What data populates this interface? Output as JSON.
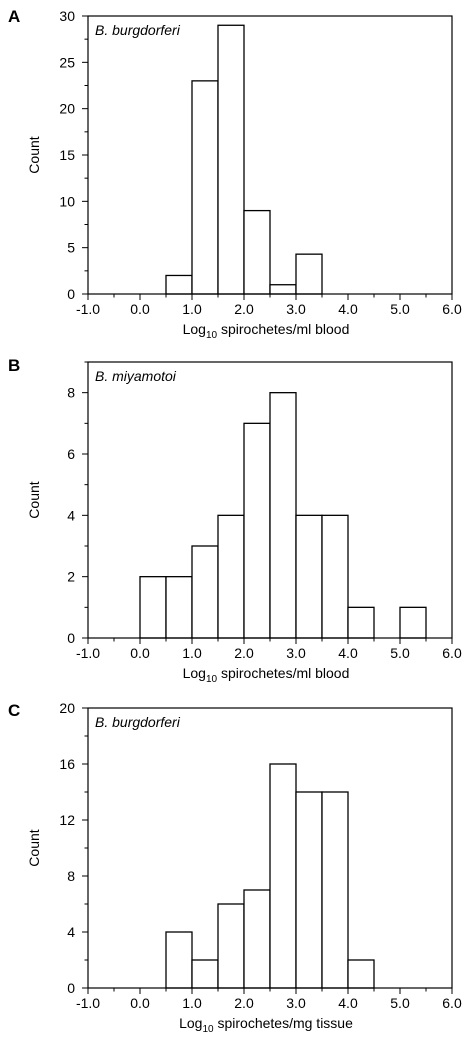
{
  "chart_data": [
    {
      "type": "bar",
      "panel_label": "A",
      "annotation": "B. burgdorferi",
      "xlabel_prefix": "Log",
      "xlabel_sub": "10",
      "xlabel_rest": " spirochetes/ml blood",
      "ylabel": "Count",
      "xlim": [
        -1.0,
        6.0
      ],
      "ylim": [
        0,
        30
      ],
      "x_ticks": [
        "-1.0",
        "0.0",
        "1.0",
        "2.0",
        "3.0",
        "4.0",
        "5.0",
        "6.0"
      ],
      "y_ticks": [
        0,
        5,
        10,
        15,
        20,
        25,
        30
      ],
      "bins": [
        [
          0.5,
          1.0
        ],
        [
          1.0,
          1.5
        ],
        [
          1.5,
          2.0
        ],
        [
          2.0,
          2.5
        ],
        [
          2.5,
          3.0
        ],
        [
          3.0,
          3.5
        ]
      ],
      "values": [
        2,
        23,
        29,
        9,
        1,
        4.3
      ]
    },
    {
      "type": "bar",
      "panel_label": "B",
      "annotation": "B. miyamotoi",
      "xlabel_prefix": "Log",
      "xlabel_sub": "10",
      "xlabel_rest": " spirochetes/ml blood",
      "ylabel": "Count",
      "xlim": [
        -1.0,
        6.0
      ],
      "ylim": [
        0,
        9
      ],
      "x_ticks": [
        "-1.0",
        "0.0",
        "1.0",
        "2.0",
        "3.0",
        "4.0",
        "5.0",
        "6.0"
      ],
      "y_ticks": [
        0,
        2,
        4,
        6,
        8
      ],
      "bins": [
        [
          0.0,
          0.5
        ],
        [
          0.5,
          1.0
        ],
        [
          1.0,
          1.5
        ],
        [
          1.5,
          2.0
        ],
        [
          2.0,
          2.5
        ],
        [
          2.5,
          3.0
        ],
        [
          3.0,
          3.5
        ],
        [
          3.5,
          4.0
        ],
        [
          4.0,
          4.5
        ],
        [
          5.0,
          5.5
        ]
      ],
      "values": [
        2,
        2,
        3,
        4,
        7,
        8,
        4,
        4,
        1,
        1
      ]
    },
    {
      "type": "bar",
      "panel_label": "C",
      "annotation": "B. burgdorferi",
      "xlabel_prefix": "Log",
      "xlabel_sub": "10",
      "xlabel_rest": " spirochetes/mg tissue",
      "ylabel": "Count",
      "xlim": [
        -1.0,
        6.0
      ],
      "ylim": [
        0,
        20
      ],
      "x_ticks": [
        "-1.0",
        "0.0",
        "1.0",
        "2.0",
        "3.0",
        "4.0",
        "5.0",
        "6.0"
      ],
      "y_ticks": [
        0,
        4,
        8,
        12,
        16,
        20
      ],
      "bins": [
        [
          0.5,
          1.0
        ],
        [
          1.0,
          1.5
        ],
        [
          1.5,
          2.0
        ],
        [
          2.0,
          2.5
        ],
        [
          2.5,
          3.0
        ],
        [
          3.0,
          3.5
        ],
        [
          3.5,
          4.0
        ],
        [
          4.0,
          4.5
        ]
      ],
      "values": [
        4,
        2,
        6,
        7,
        16,
        14,
        14,
        2
      ]
    }
  ]
}
